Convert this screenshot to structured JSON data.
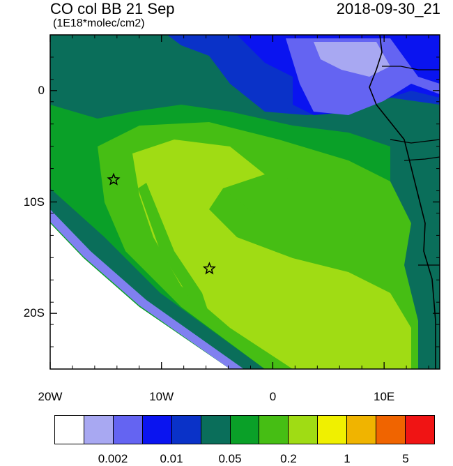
{
  "header": {
    "title_left": "CO col BB 21 Sep",
    "subtitle": "(1E18*molec/cm2)",
    "title_right": "2018-09-30_21"
  },
  "axes": {
    "x_ticks": [
      {
        "value": -20,
        "label": "20W"
      },
      {
        "value": -10,
        "label": "10W"
      },
      {
        "value": 0,
        "label": "0"
      },
      {
        "value": 10,
        "label": "10E"
      }
    ],
    "y_ticks": [
      {
        "value": 0,
        "label": "0"
      },
      {
        "value": -10,
        "label": "10S"
      },
      {
        "value": -20,
        "label": "20S"
      }
    ],
    "lon_range": [
      -20,
      15
    ],
    "lat_range": [
      -25,
      5
    ]
  },
  "markers": [
    {
      "name": "star-marker-1",
      "lon": -14.3,
      "lat": -8.0
    },
    {
      "name": "star-marker-2",
      "lon": -5.7,
      "lat": -16.0
    }
  ],
  "colorbar": {
    "colors": [
      "#ffffff",
      "#a8a8f2",
      "#6464f2",
      "#0a14f0",
      "#0a32c8",
      "#0a6e5a",
      "#0aa028",
      "#46be14",
      "#a0dc14",
      "#f0f000",
      "#f0b400",
      "#f06400",
      "#f01414"
    ],
    "labels": [
      {
        "text": "0.002",
        "index": 2
      },
      {
        "text": "0.01",
        "index": 4
      },
      {
        "text": "0.05",
        "index": 6
      },
      {
        "text": "0.2",
        "index": 8
      },
      {
        "text": "1",
        "index": 10
      },
      {
        "text": "5",
        "index": 12
      }
    ]
  }
}
